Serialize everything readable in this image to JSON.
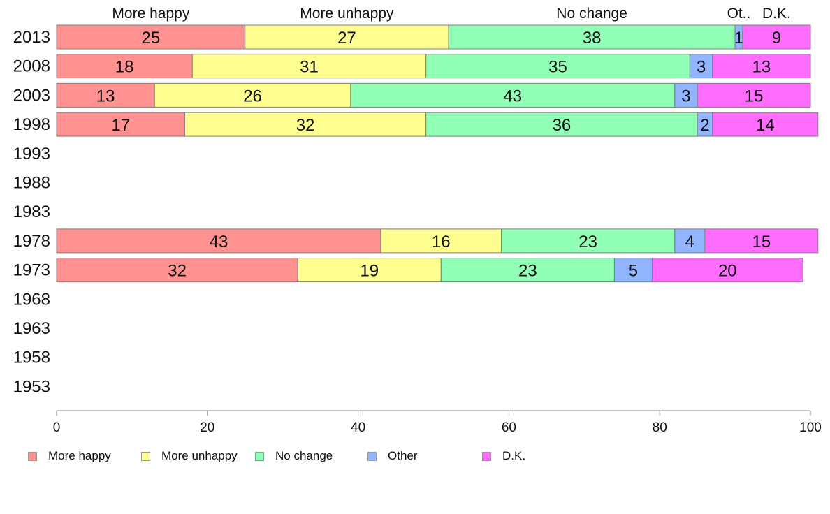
{
  "chart_data": {
    "type": "bar",
    "orientation": "horizontal",
    "stacked": true,
    "categories": [
      "2013",
      "2008",
      "2003",
      "1998",
      "1993",
      "1988",
      "1983",
      "1978",
      "1973",
      "1968",
      "1963",
      "1958",
      "1953"
    ],
    "column_headers": [
      "More happy",
      "More unhappy",
      "No change",
      "Ot..",
      "D.K."
    ],
    "series": [
      {
        "name": "More happy",
        "color": "#ff9191",
        "values": [
          25,
          18,
          13,
          17,
          null,
          null,
          null,
          43,
          32,
          null,
          null,
          null,
          null
        ],
        "labels": [
          "25",
          "18",
          "13",
          "17",
          "",
          "",
          "",
          "43",
          "32",
          "",
          "",
          "",
          ""
        ]
      },
      {
        "name": "More unhappy",
        "color": "#ffff91",
        "values": [
          27,
          31,
          26,
          32,
          null,
          null,
          null,
          16,
          19,
          null,
          null,
          null,
          null
        ],
        "labels": [
          "27",
          "31",
          "26",
          "32",
          "",
          "",
          "",
          "16",
          "19",
          "",
          "",
          "",
          ""
        ]
      },
      {
        "name": "No change",
        "color": "#91ffb5",
        "values": [
          38,
          35,
          43,
          36,
          null,
          null,
          null,
          23,
          23,
          null,
          null,
          null,
          null
        ],
        "labels": [
          "38",
          "35",
          "43",
          "36",
          "",
          "",
          "",
          "23",
          "23",
          "",
          "",
          "",
          ""
        ]
      },
      {
        "name": "Other",
        "color": "#91b5ff",
        "values": [
          1,
          3,
          3,
          2,
          null,
          null,
          null,
          4,
          5,
          null,
          null,
          null,
          null
        ],
        "labels": [
          "1",
          "3",
          "3",
          "2",
          "",
          "",
          "",
          "4",
          "5",
          "",
          "",
          "",
          ""
        ]
      },
      {
        "name": "D.K.",
        "color": "#ff6dff",
        "values": [
          9,
          13,
          15,
          14,
          null,
          null,
          null,
          15,
          20,
          null,
          null,
          null,
          null
        ],
        "labels": [
          "9",
          "13",
          "15",
          "14",
          "",
          "",
          "",
          "15",
          "20",
          "",
          "",
          "",
          ""
        ]
      }
    ],
    "xlim": [
      0,
      100
    ],
    "xticks": [
      "0",
      "20",
      "40",
      "60",
      "80",
      "100"
    ],
    "grid": false,
    "legend": {
      "position": "bottom-left",
      "entries": [
        "More happy",
        "More unhappy",
        "No change",
        "Other",
        "D.K."
      ]
    }
  }
}
